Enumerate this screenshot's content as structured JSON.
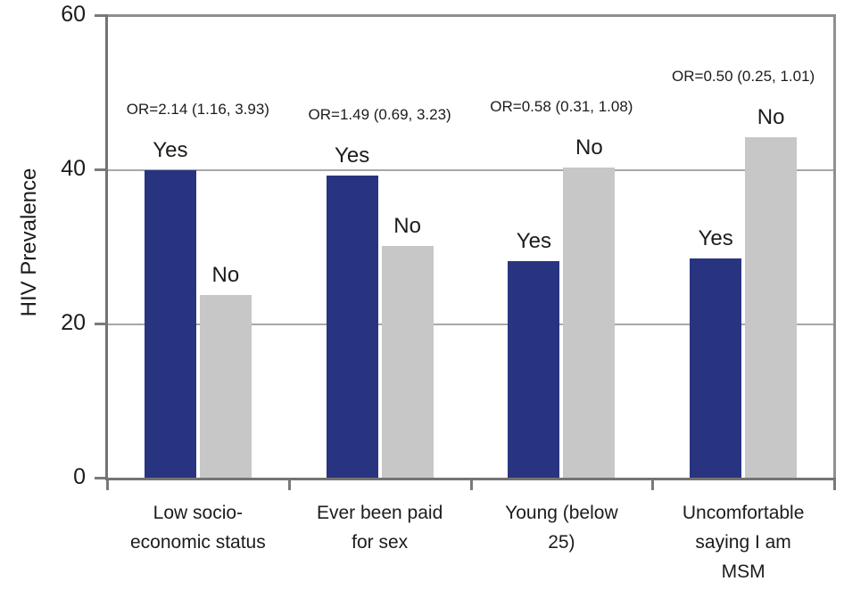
{
  "chart_data": {
    "type": "bar",
    "title": "",
    "xlabel": "",
    "ylabel": "HIV Prevalence",
    "ylim": [
      0,
      60
    ],
    "yticks": [
      0,
      20,
      40,
      60
    ],
    "grid": "horizontal",
    "legend": "none",
    "bar_labels": {
      "yes": "Yes",
      "no": "No"
    },
    "series_names": [
      "Yes",
      "No"
    ],
    "groups": [
      {
        "category": "Low socio-\neconomic status",
        "or_label": "OR=2.14 (1.16, 3.93)",
        "yes": 40,
        "no": 23.8
      },
      {
        "category": "Ever been paid\nfor sex",
        "or_label": "OR=1.49 (0.69, 3.23)",
        "yes": 39.3,
        "no": 30.2
      },
      {
        "category": "Young (below\n25)",
        "or_label": "OR=0.58 (0.31, 1.08)",
        "yes": 28.2,
        "no": 40.3
      },
      {
        "category": "Uncomfortable\nsaying I am\nMSM",
        "or_label": "OR=0.50 (0.25, 1.01)",
        "yes": 28.5,
        "no": 44.3
      }
    ],
    "colors": {
      "yes_bar": "#293480",
      "no_bar": "#c7c7c7",
      "axis": "#747474",
      "gridline": "#a8a8a8",
      "frame": "#8f8f8f",
      "text": "#1c1c1c",
      "background": "#ffffff"
    }
  }
}
